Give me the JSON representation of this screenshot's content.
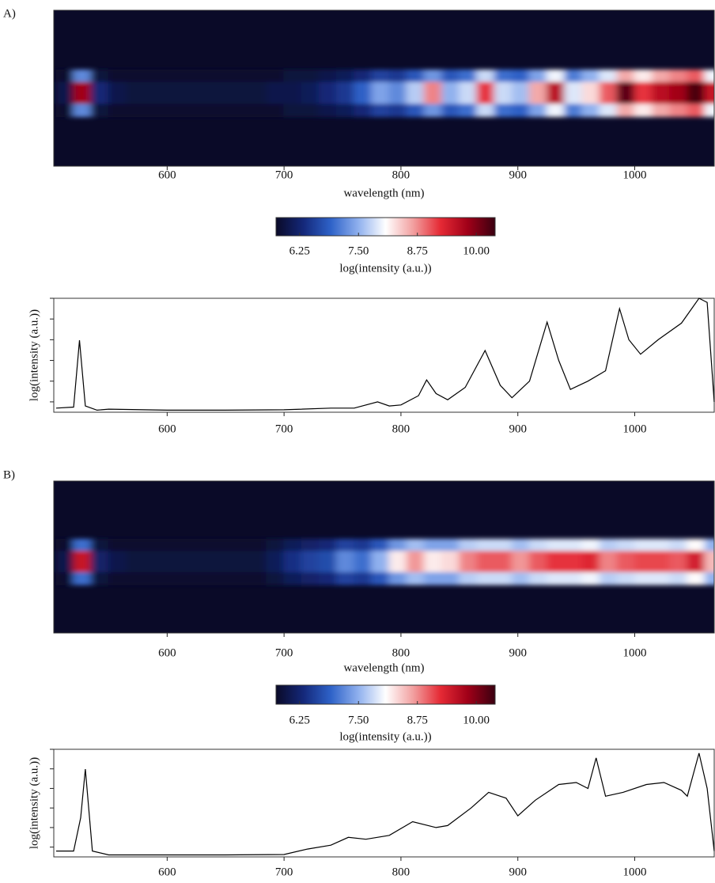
{
  "panel_labels": [
    "A)",
    "B)"
  ],
  "chart_data": [
    {
      "type": "heatmap",
      "x": [
        512,
        527,
        542,
        557,
        572,
        587,
        602,
        617,
        632,
        647,
        662,
        677,
        692,
        707,
        722,
        737,
        752,
        767,
        782,
        797,
        812,
        827,
        842,
        857,
        872,
        887,
        902,
        917,
        932,
        947,
        962,
        977,
        992,
        1007,
        1022,
        1037,
        1052,
        1067
      ],
      "rows": [
        [
          5.8,
          7.2,
          5.9,
          5.8,
          5.8,
          5.8,
          5.8,
          5.8,
          5.8,
          5.8,
          5.8,
          5.8,
          5.8,
          5.9,
          5.9,
          6.0,
          6.1,
          6.3,
          6.6,
          6.5,
          6.8,
          7.3,
          6.8,
          7.0,
          7.8,
          7.0,
          6.9,
          7.4,
          8.0,
          7.1,
          7.5,
          7.9,
          8.6,
          8.2,
          8.6,
          8.8,
          9.0,
          8.0
        ],
        [
          6.0,
          9.8,
          6.3,
          6.0,
          5.9,
          5.9,
          5.9,
          5.9,
          5.9,
          5.9,
          5.9,
          5.9,
          6.0,
          6.0,
          6.1,
          6.3,
          6.5,
          6.9,
          7.4,
          7.2,
          7.7,
          8.8,
          7.5,
          7.8,
          9.2,
          7.8,
          7.6,
          8.6,
          9.6,
          7.9,
          8.3,
          9.0,
          10.2,
          9.2,
          9.6,
          9.8,
          10.3,
          9.5
        ],
        [
          5.8,
          7.2,
          5.9,
          5.8,
          5.8,
          5.8,
          5.8,
          5.8,
          5.8,
          5.8,
          5.8,
          5.8,
          5.8,
          5.9,
          5.9,
          6.0,
          6.1,
          6.3,
          6.6,
          6.5,
          6.8,
          7.3,
          6.8,
          7.0,
          7.8,
          7.0,
          6.9,
          7.4,
          8.0,
          7.1,
          7.5,
          7.9,
          8.6,
          8.2,
          8.6,
          8.8,
          9.0,
          8.0
        ]
      ],
      "xlim": [
        503,
        1068
      ],
      "xticks": [
        600,
        700,
        800,
        900,
        1000
      ],
      "xlabel": "wavelength (nm)",
      "zlim": [
        5.75,
        10.4
      ],
      "zticks": [
        6.25,
        {
          "value": 7.5,
          "label": "7.50"
        },
        8.75,
        {
          "value": 10,
          "label": "10.00"
        }
      ],
      "colorbar_label": "log(intensity (a.u.))",
      "colormap": [
        "#0a0a28",
        "#14287a",
        "#2e62c8",
        "#8fb0ee",
        "#ffffff",
        "#f2a0a0",
        "#e52a35",
        "#a00018",
        "#3a0010"
      ]
    },
    {
      "type": "line",
      "x": [
        505,
        520,
        525,
        530,
        540,
        550,
        600,
        650,
        700,
        740,
        760,
        780,
        790,
        800,
        815,
        822,
        830,
        840,
        855,
        872,
        885,
        895,
        910,
        925,
        935,
        945,
        960,
        975,
        987,
        995,
        1005,
        1020,
        1040,
        1055,
        1062,
        1068
      ],
      "values": [
        5.7,
        5.75,
        8.97,
        5.8,
        5.6,
        5.65,
        5.6,
        5.6,
        5.62,
        5.7,
        5.7,
        6.0,
        5.8,
        5.85,
        6.3,
        7.06,
        6.4,
        6.1,
        6.7,
        8.48,
        6.8,
        6.2,
        7.0,
        9.85,
        8.0,
        6.6,
        7.0,
        7.5,
        10.5,
        9.0,
        8.3,
        9.0,
        9.8,
        11.0,
        10.8,
        6.0
      ],
      "color": "#000000",
      "xlim": [
        503,
        1068
      ],
      "xticks": [
        600,
        700,
        800,
        900,
        1000
      ],
      "ylim": [
        5.5,
        11.0
      ],
      "yticks": [
        6,
        7,
        8,
        9,
        10,
        11
      ],
      "ylabel": "log(intensity (a.u.))"
    },
    {
      "type": "heatmap",
      "x": [
        512,
        527,
        542,
        557,
        572,
        587,
        602,
        617,
        632,
        647,
        662,
        677,
        692,
        707,
        722,
        737,
        752,
        767,
        782,
        797,
        812,
        827,
        842,
        857,
        872,
        887,
        902,
        917,
        932,
        947,
        962,
        977,
        992,
        1007,
        1022,
        1037,
        1052,
        1067
      ],
      "rows": [
        [
          5.8,
          7.0,
          5.9,
          5.8,
          5.8,
          5.8,
          5.8,
          5.8,
          5.8,
          5.8,
          5.8,
          5.8,
          5.9,
          6.1,
          6.2,
          6.3,
          6.6,
          6.5,
          6.8,
          7.3,
          7.6,
          7.4,
          7.4,
          7.7,
          7.8,
          7.8,
          7.6,
          7.8,
          7.9,
          7.9,
          8.0,
          7.7,
          7.8,
          7.9,
          7.9,
          7.8,
          8.1,
          7.5
        ],
        [
          6.0,
          9.5,
          6.2,
          6.0,
          5.9,
          5.9,
          5.9,
          5.9,
          5.9,
          5.9,
          5.9,
          5.9,
          6.1,
          6.4,
          6.6,
          6.7,
          7.2,
          7.0,
          7.5,
          8.2,
          8.7,
          8.2,
          8.3,
          8.8,
          9.0,
          9.0,
          8.7,
          9.0,
          9.2,
          9.2,
          9.3,
          8.8,
          9.0,
          9.1,
          9.1,
          9.0,
          9.4,
          8.5
        ],
        [
          5.8,
          7.0,
          5.9,
          5.8,
          5.8,
          5.8,
          5.8,
          5.8,
          5.8,
          5.8,
          5.8,
          5.8,
          5.9,
          6.1,
          6.2,
          6.3,
          6.6,
          6.5,
          6.8,
          7.3,
          7.6,
          7.4,
          7.4,
          7.7,
          7.8,
          7.8,
          7.6,
          7.8,
          7.9,
          7.9,
          8.0,
          7.7,
          7.8,
          7.9,
          7.9,
          7.8,
          8.1,
          7.5
        ]
      ],
      "xlim": [
        503,
        1068
      ],
      "xticks": [
        600,
        700,
        800,
        900,
        1000
      ],
      "xlabel": "wavelength (nm)",
      "zlim": [
        5.75,
        10.4
      ],
      "zticks": [
        6.25,
        {
          "value": 7.5,
          "label": "7.50"
        },
        8.75,
        {
          "value": 10,
          "label": "10.00"
        }
      ],
      "colorbar_label": "log(intensity (a.u.))",
      "colormap": [
        "#0a0a28",
        "#14287a",
        "#2e62c8",
        "#8fb0ee",
        "#ffffff",
        "#f2a0a0",
        "#e52a35",
        "#a00018",
        "#3a0010"
      ]
    },
    {
      "type": "line",
      "x": [
        505,
        520,
        526,
        530,
        536,
        550,
        600,
        650,
        700,
        720,
        740,
        755,
        770,
        790,
        810,
        830,
        840,
        860,
        875,
        890,
        900,
        915,
        935,
        950,
        960,
        967,
        975,
        990,
        1010,
        1025,
        1040,
        1045,
        1055,
        1062,
        1068
      ],
      "values": [
        5.8,
        5.8,
        7.5,
        9.99,
        5.8,
        5.6,
        5.6,
        5.6,
        5.62,
        5.9,
        6.1,
        6.5,
        6.4,
        6.6,
        7.3,
        7.0,
        7.1,
        8.0,
        8.8,
        8.5,
        7.6,
        8.4,
        9.2,
        9.3,
        9.0,
        10.56,
        8.6,
        8.8,
        9.2,
        9.3,
        8.9,
        8.6,
        10.8,
        9.0,
        5.8
      ],
      "color": "#000000",
      "xlim": [
        503,
        1068
      ],
      "xticks": [
        600,
        700,
        800,
        900,
        1000
      ],
      "ylim": [
        5.5,
        11.0
      ],
      "yticks": [
        6,
        7,
        8,
        9,
        10,
        11
      ],
      "ylabel": "log(intensity (a.u.))"
    }
  ]
}
